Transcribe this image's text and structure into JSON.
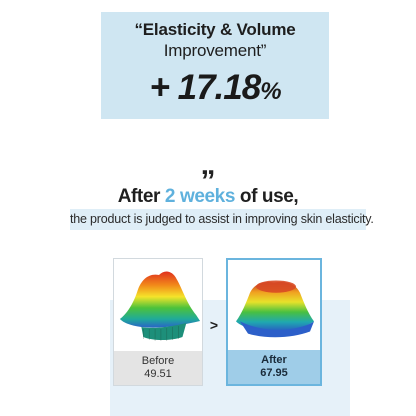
{
  "stat": {
    "line1": "“Elasticity & Volume",
    "line2": "Improvement”",
    "value_number": "+ 17.18",
    "value_unit": "%"
  },
  "quote_mark": "„",
  "headline": {
    "before": "After ",
    "accent": "2 weeks",
    "after": " of use,"
  },
  "subline": "the product is judged to assist in improving skin elasticity.",
  "comparison": {
    "arrow": ">",
    "before": {
      "label": "Before",
      "value": "49.51"
    },
    "after": {
      "label": "After",
      "value": "67.95"
    }
  },
  "colors": {
    "stat_box": "#cfe6f2",
    "accent": "#5fb1dd",
    "subline_bg": "#dfeef7",
    "panel_bg": "#e6f1f9",
    "after_footer": "#9fcde8"
  }
}
